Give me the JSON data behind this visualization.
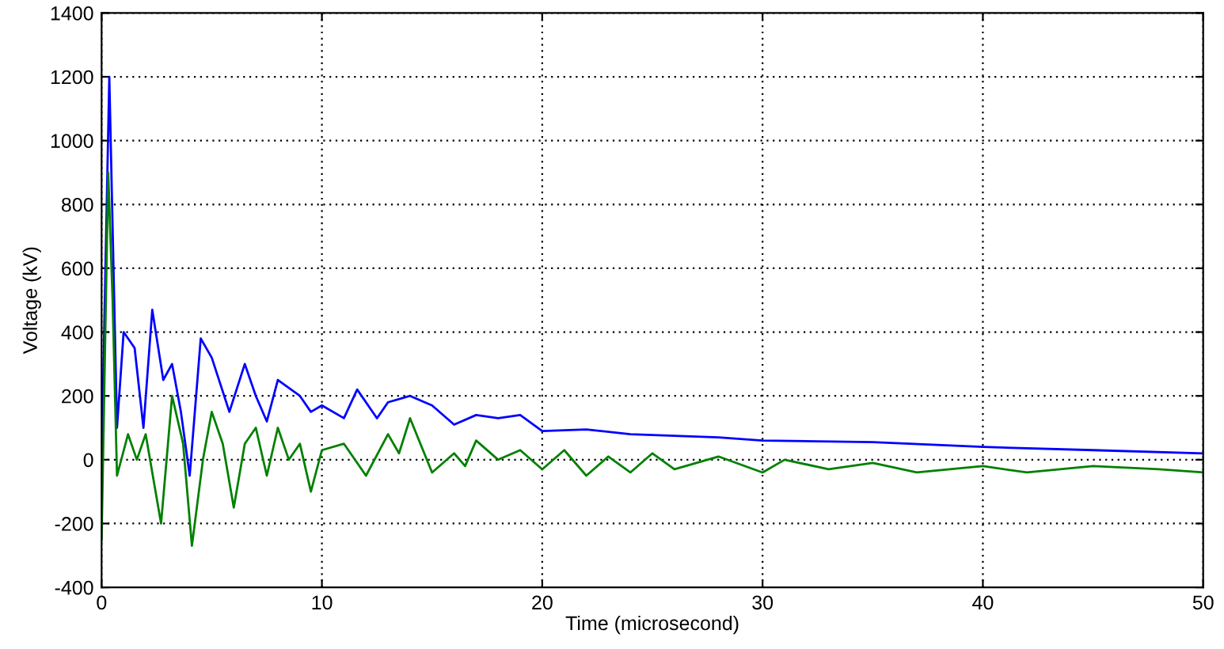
{
  "chart_data": {
    "type": "line",
    "xlabel": "Time (microsecond)",
    "ylabel": "Voltage (kV)",
    "xlim": [
      0,
      50
    ],
    "xticks": [
      0,
      10,
      20,
      30,
      40,
      50
    ],
    "ylim": [
      -400,
      1400
    ],
    "yticks": [
      -400,
      -200,
      0,
      200,
      400,
      600,
      800,
      1000,
      1200,
      1400
    ],
    "grid": true,
    "line_style": "solid",
    "marker": "none",
    "series": [
      {
        "color": "#0000ff",
        "x": [
          0,
          0.35,
          0.7,
          1,
          1.5,
          1.9,
          2.3,
          2.8,
          3.2,
          3.6,
          4.0,
          4.5,
          5,
          5.8,
          6.5,
          7,
          7.5,
          8,
          9,
          9.5,
          10,
          11,
          11.6,
          12.5,
          13,
          14,
          15,
          16,
          17,
          18,
          19,
          20,
          22,
          24,
          26,
          28,
          30,
          35,
          40,
          45,
          50
        ],
        "values": [
          0,
          1200,
          100,
          400,
          350,
          100,
          470,
          250,
          300,
          150,
          -50,
          380,
          320,
          150,
          300,
          200,
          120,
          250,
          200,
          150,
          170,
          130,
          220,
          130,
          180,
          200,
          170,
          110,
          140,
          130,
          140,
          90,
          95,
          80,
          75,
          70,
          60,
          55,
          40,
          30,
          20
        ]
      },
      {
        "color": "#008000",
        "x": [
          0,
          0.3,
          0.5,
          0.7,
          1.2,
          1.6,
          2,
          2.7,
          3.2,
          3.7,
          4.1,
          4.6,
          5,
          5.5,
          6,
          6.5,
          7,
          7.5,
          8,
          8.5,
          9,
          9.5,
          10,
          11,
          11.5,
          12,
          13,
          13.5,
          14,
          15,
          16,
          16.5,
          17,
          18,
          19,
          20,
          21,
          22,
          23,
          24,
          25,
          26,
          28,
          30,
          31,
          33,
          35,
          37,
          40,
          42,
          45,
          48,
          50
        ],
        "values": [
          -250,
          900,
          500,
          -50,
          80,
          0,
          80,
          -200,
          200,
          50,
          -270,
          0,
          150,
          50,
          -150,
          50,
          100,
          -50,
          100,
          0,
          50,
          -100,
          30,
          50,
          0,
          -50,
          80,
          20,
          130,
          -40,
          20,
          -20,
          60,
          0,
          30,
          -30,
          30,
          -50,
          10,
          -40,
          20,
          -30,
          10,
          -40,
          0,
          -30,
          -10,
          -40,
          -20,
          -40,
          -20,
          -30,
          -40
        ]
      }
    ]
  }
}
